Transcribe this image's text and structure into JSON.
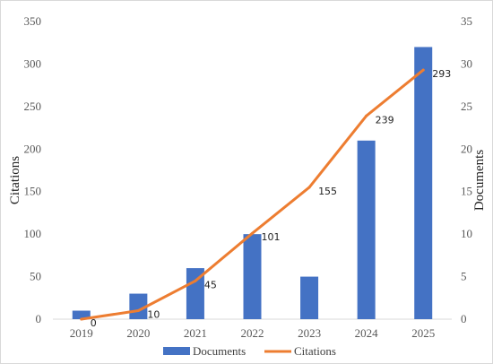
{
  "chart_data": {
    "type": "bar+line",
    "categories": [
      "2019",
      "2020",
      "2021",
      "2022",
      "2023",
      "2024",
      "2025"
    ],
    "series": [
      {
        "name": "Documents",
        "type": "bar",
        "axis": "right",
        "values": [
          1,
          3,
          6,
          10,
          5,
          21,
          32
        ],
        "color": "#4472c4"
      },
      {
        "name": "Citations",
        "type": "line",
        "axis": "left",
        "values": [
          0,
          10,
          45,
          101,
          155,
          239,
          293
        ],
        "data_labels": [
          "0",
          "10",
          "45",
          "101",
          "155",
          "239",
          "293"
        ],
        "color": "#ed7d31"
      }
    ],
    "left_axis": {
      "label": "Citations",
      "range": [
        0,
        350
      ],
      "ticks": [
        "0",
        "50",
        "100",
        "150",
        "200",
        "250",
        "300",
        "350"
      ]
    },
    "right_axis": {
      "label": "Documents",
      "range": [
        0,
        35
      ],
      "ticks": [
        "0",
        "5",
        "10",
        "15",
        "20",
        "25",
        "30",
        "35"
      ]
    },
    "grid": false,
    "legend_position": "bottom"
  }
}
